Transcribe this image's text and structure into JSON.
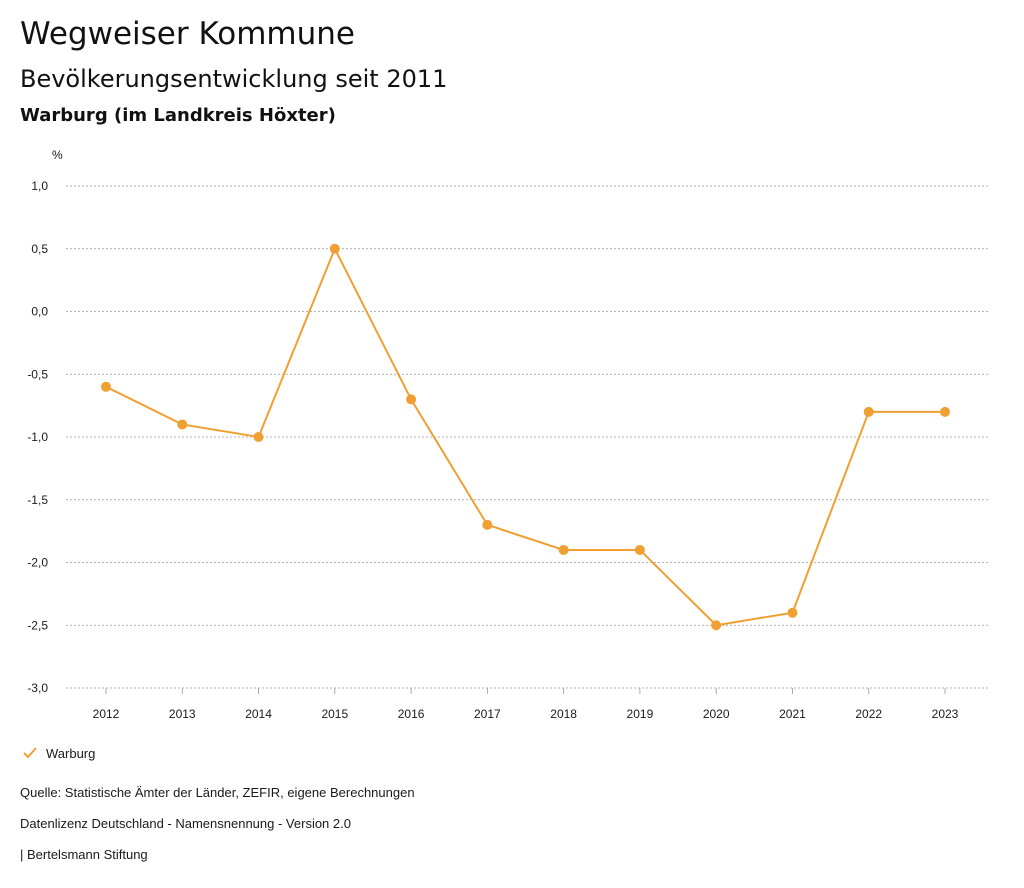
{
  "header": {
    "title": "Wegweiser Kommune",
    "subtitle": "Bevölkerungsentwicklung seit 2011",
    "region": "Warburg (im Landkreis Höxter)"
  },
  "chart_data": {
    "type": "line",
    "ylabel": "%",
    "ylim": [
      -3.0,
      1.0
    ],
    "yticks": [
      "1,0",
      "0,5",
      "0,0",
      "-0,5",
      "-1,0",
      "-1,5",
      "-2,0",
      "-2,5",
      "-3,0"
    ],
    "ytick_values": [
      1.0,
      0.5,
      0.0,
      -0.5,
      -1.0,
      -1.5,
      -2.0,
      -2.5,
      -3.0
    ],
    "categories": [
      "2012",
      "2013",
      "2014",
      "2015",
      "2016",
      "2017",
      "2018",
      "2019",
      "2020",
      "2021",
      "2022",
      "2023"
    ],
    "series": [
      {
        "name": "Warburg",
        "color": "#f0a032",
        "values": [
          -0.6,
          -0.9,
          -1.0,
          0.5,
          -0.7,
          -1.7,
          -1.9,
          -1.9,
          -2.5,
          -2.4,
          -0.8,
          -0.8
        ]
      }
    ],
    "grid": true,
    "legend": "bottom-left"
  },
  "legend": {
    "label": "Warburg"
  },
  "footer": {
    "source": "Quelle: Statistische Ämter der Länder, ZEFIR, eigene Berechnungen",
    "license": "Datenlizenz Deutschland - Namensnennung - Version 2.0",
    "publisher": "| Bertelsmann Stiftung"
  }
}
